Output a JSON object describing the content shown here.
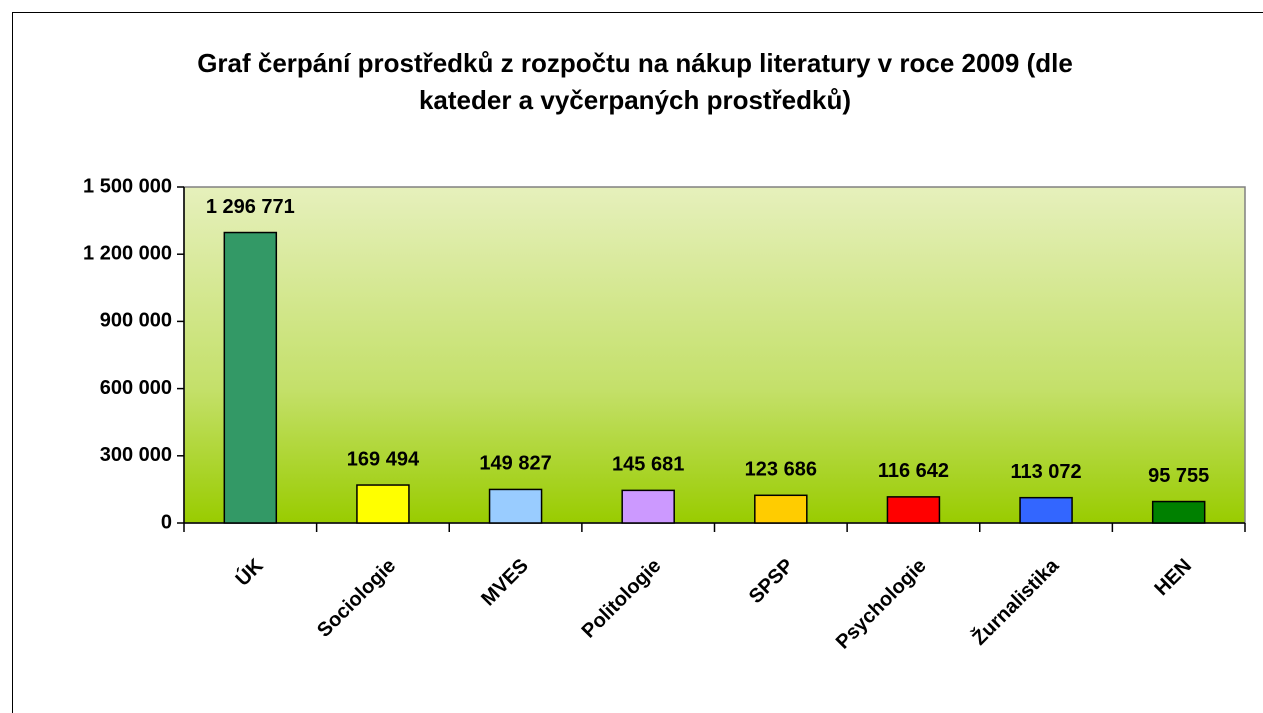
{
  "chart_data": {
    "type": "bar",
    "title": "Graf čerpání prostředků z rozpočtu na nákup literatury v roce 2009 (dle kateder a vyčerpaných prostředků)",
    "categories": [
      "ÚK",
      "Sociologie",
      "MVES",
      "Politologie",
      "SPSP",
      "Psychologie",
      "Žurnalistika",
      "HEN"
    ],
    "values": [
      1296771,
      169494,
      149827,
      145681,
      123686,
      116642,
      113072,
      95755
    ],
    "value_labels": [
      "1 296 771",
      "169 494",
      "149 827",
      "145 681",
      "123 686",
      "116 642",
      "113 072",
      "95 755"
    ],
    "colors": [
      "#339966",
      "#ffff00",
      "#99ccff",
      "#cc99ff",
      "#ffcc00",
      "#ff0000",
      "#3366ff",
      "#008000"
    ],
    "ylim": [
      0,
      1500000
    ],
    "yticks": [
      0,
      {
        "value": 300000,
        "label": "300 000"
      },
      {
        "value": 600000,
        "label": "600 000"
      },
      {
        "value": 900000,
        "label": "900 000"
      },
      {
        "value": 1200000,
        "label": "1 200 000"
      },
      {
        "value": 1500000,
        "label": "1 500 000"
      }
    ]
  }
}
